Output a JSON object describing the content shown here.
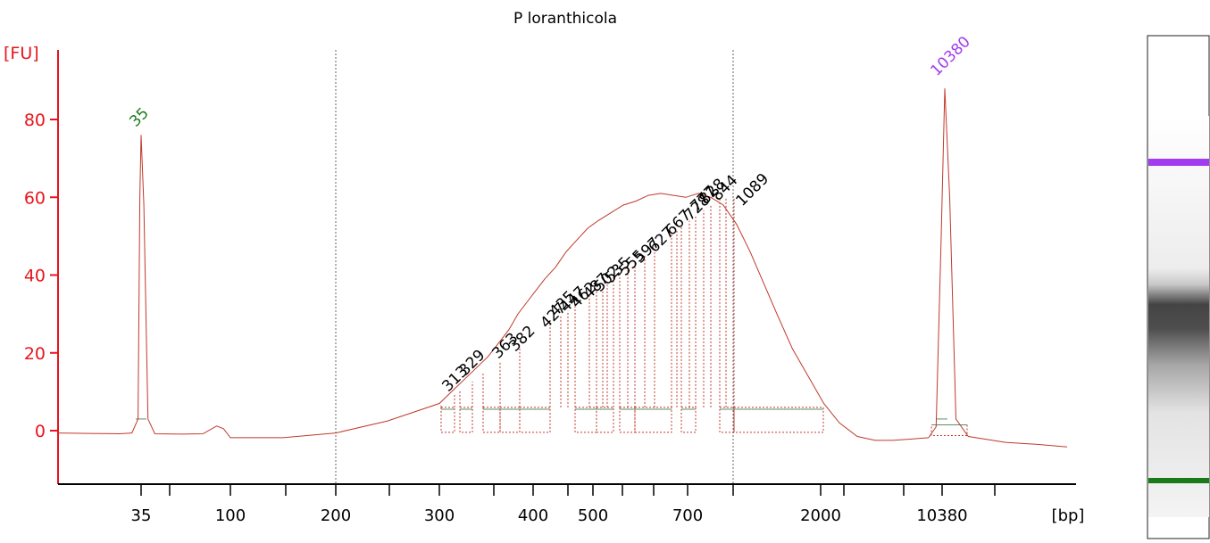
{
  "chart_data": {
    "type": "line",
    "title": "P loranthicola",
    "ylabel": "[FU]",
    "xlabel": "[bp]",
    "ylim": [
      -13,
      97
    ],
    "y_ticks": [
      0,
      20,
      40,
      60,
      80
    ],
    "x_tick_labels": [
      "35",
      "100",
      "200",
      "300",
      "400",
      "500",
      "700",
      "2000",
      "10380"
    ],
    "x_scale": "nonlinear (migration time)",
    "grid": "vertical dotted markers at 200 and 1000 bp",
    "markers": [
      {
        "label": "35",
        "height": 76,
        "color": "#1a7a1a"
      },
      {
        "label": "10380",
        "height": 88,
        "color": "#a23cf0"
      }
    ],
    "peak_labels": [
      "313",
      "329",
      "363",
      "382",
      "427",
      "435",
      "447",
      "462",
      "487",
      "502",
      "535",
      "555",
      "597",
      "627",
      "667",
      "728",
      "777",
      "828",
      "844",
      "1089"
    ],
    "trace_points": {
      "series_name": "electropherogram",
      "points": [
        [
          -100,
          -0.6
        ],
        [
          -50,
          -0.7
        ],
        [
          0,
          -0.8
        ],
        [
          20,
          -0.6
        ],
        [
          30,
          3
        ],
        [
          33,
          60
        ],
        [
          35,
          76
        ],
        [
          37,
          58
        ],
        [
          40,
          3
        ],
        [
          45,
          -0.8
        ],
        [
          65,
          -0.9
        ],
        [
          80,
          -0.8
        ],
        [
          90,
          1.2
        ],
        [
          95,
          0.5
        ],
        [
          100,
          -1.8
        ],
        [
          150,
          -1.8
        ],
        [
          200,
          -0.6
        ],
        [
          250,
          2.5
        ],
        [
          300,
          7
        ],
        [
          320,
          10
        ],
        [
          340,
          13
        ],
        [
          360,
          16
        ],
        [
          380,
          19
        ],
        [
          400,
          23
        ],
        [
          420,
          26
        ],
        [
          440,
          30
        ],
        [
          460,
          33
        ],
        [
          480,
          36
        ],
        [
          500,
          39
        ],
        [
          520,
          42
        ],
        [
          540,
          46
        ],
        [
          560,
          49
        ],
        [
          580,
          52
        ],
        [
          600,
          54
        ],
        [
          620,
          56
        ],
        [
          640,
          58
        ],
        [
          660,
          59
        ],
        [
          680,
          60.5
        ],
        [
          700,
          61
        ],
        [
          720,
          60.5
        ],
        [
          740,
          60
        ],
        [
          760,
          61
        ],
        [
          780,
          60
        ],
        [
          800,
          58
        ],
        [
          850,
          53
        ],
        [
          900,
          46
        ],
        [
          950,
          38
        ],
        [
          1000,
          30
        ],
        [
          1050,
          21
        ],
        [
          1100,
          14
        ],
        [
          1150,
          7
        ],
        [
          1200,
          2
        ],
        [
          1250,
          -1.5
        ],
        [
          1300,
          -2.5
        ],
        [
          1350,
          -2.5
        ],
        [
          1420,
          -1.8
        ],
        [
          1435,
          1
        ],
        [
          1445,
          50
        ],
        [
          1452,
          88
        ],
        [
          1460,
          60
        ],
        [
          1470,
          3
        ],
        [
          1490,
          -1.5
        ],
        [
          1550,
          -3
        ],
        [
          1600,
          -3.5
        ],
        [
          1650,
          -4.2
        ]
      ]
    }
  },
  "gel": {
    "bands": [
      {
        "name": "upper-marker",
        "color": "#a23cf0"
      },
      {
        "name": "sample-smear",
        "color": "#444444"
      },
      {
        "name": "lower-marker",
        "color": "#1a7a1a"
      }
    ]
  }
}
